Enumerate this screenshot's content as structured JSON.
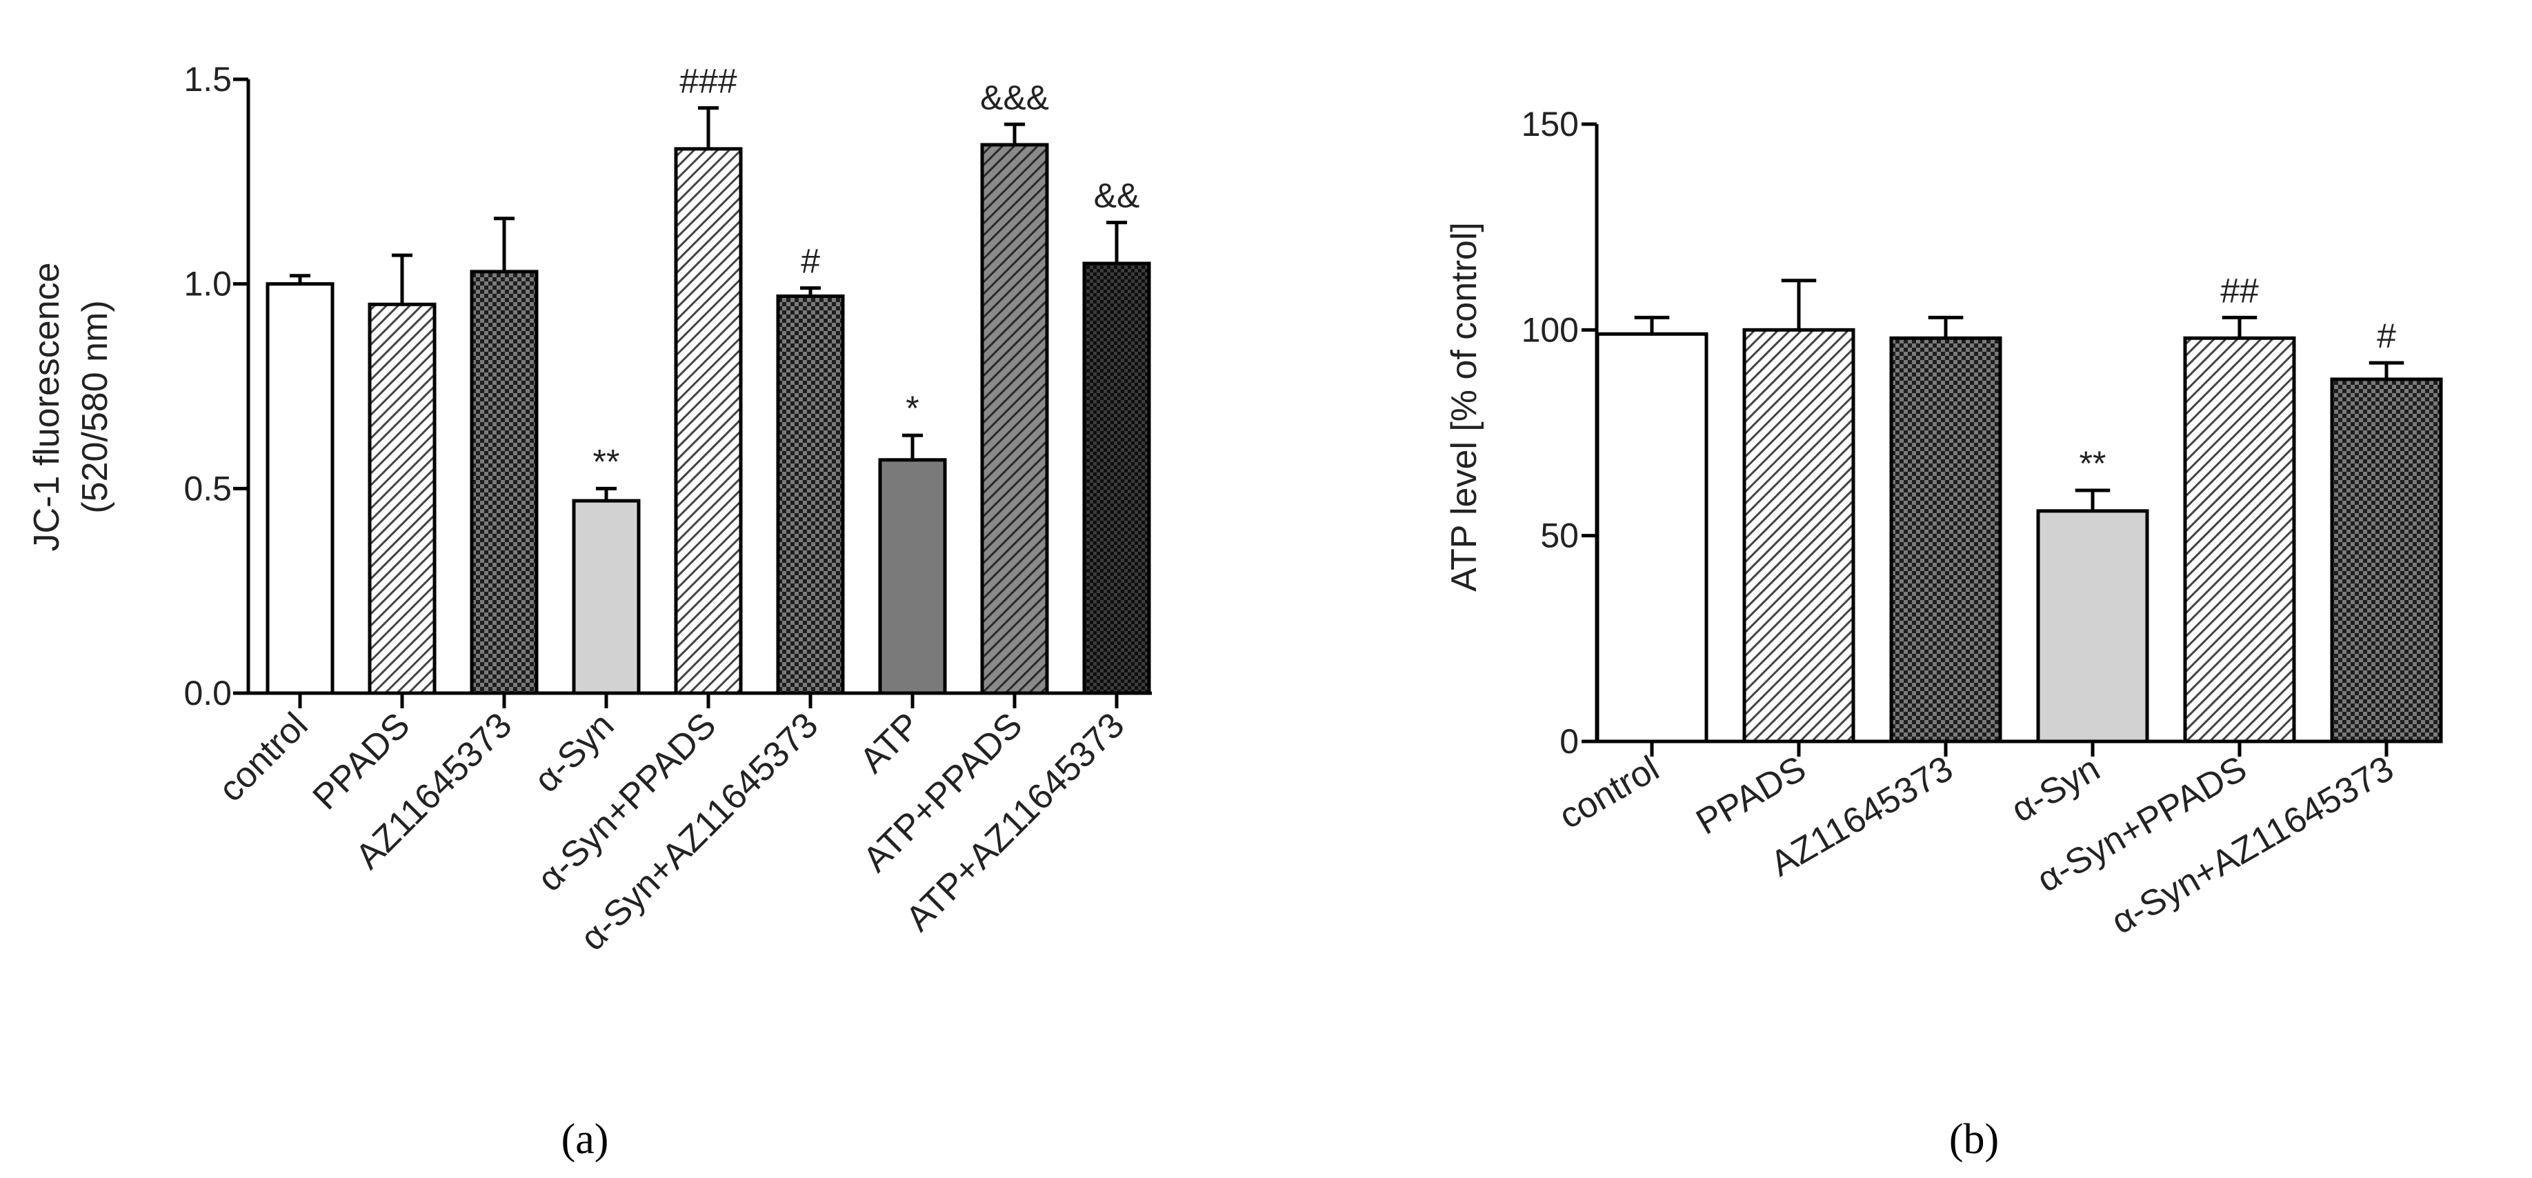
{
  "chart_data": [
    {
      "type": "bar",
      "panel_label": "(a)",
      "ylabel_line1": "JC-1 fluorescence",
      "ylabel_line2": "(520/580 nm)",
      "ylim": [
        0,
        1.5
      ],
      "yticks": [
        "0.0",
        "0.5",
        "1.0",
        "1.5"
      ],
      "ytick_values": [
        0,
        0.5,
        1.0,
        1.5
      ],
      "categories": [
        "control",
        "PPADS",
        "AZ11645373",
        "α-Syn",
        "α-Syn+PPADS",
        "α-Syn+AZ11645373",
        "ATP",
        "ATP+PPADS",
        "ATP+AZ11645373"
      ],
      "values": [
        1.0,
        0.95,
        1.03,
        0.47,
        1.33,
        0.97,
        0.57,
        1.34,
        1.05
      ],
      "errors": [
        0.02,
        0.12,
        0.13,
        0.03,
        0.1,
        0.02,
        0.06,
        0.05,
        0.1
      ],
      "annotations": [
        "",
        "",
        "",
        "**",
        "###",
        "#",
        "*",
        "&&&",
        "&&"
      ],
      "patterns": [
        "white",
        "diag",
        "check",
        "light",
        "diag",
        "check",
        "dark",
        "diag-dark",
        "check-dark"
      ]
    },
    {
      "type": "bar",
      "panel_label": "(b)",
      "ylabel": "ATP level [% of control]",
      "ylim": [
        0,
        150
      ],
      "yticks": [
        "0",
        "50",
        "100",
        "150"
      ],
      "ytick_values": [
        0,
        50,
        100,
        150
      ],
      "categories": [
        "control",
        "PPADS",
        "AZ11645373",
        "α-Syn",
        "α-Syn+PPADS",
        "α-Syn+AZ11645373"
      ],
      "values": [
        99,
        100,
        98,
        56,
        98,
        88
      ],
      "errors": [
        4,
        12,
        5,
        5,
        5,
        4
      ],
      "annotations": [
        "",
        "",
        "",
        "**",
        "##",
        "#"
      ],
      "patterns": [
        "white",
        "diag",
        "check",
        "light",
        "diag",
        "check"
      ]
    }
  ]
}
